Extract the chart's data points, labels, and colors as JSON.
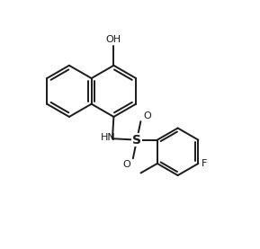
{
  "bg_color": "#ffffff",
  "line_color": "#1a1a1a",
  "line_width": 1.4,
  "font_size": 8,
  "figsize": [
    2.89,
    2.77
  ],
  "dpi": 100,
  "xlim": [
    0,
    10
  ],
  "ylim": [
    0,
    9.6
  ]
}
